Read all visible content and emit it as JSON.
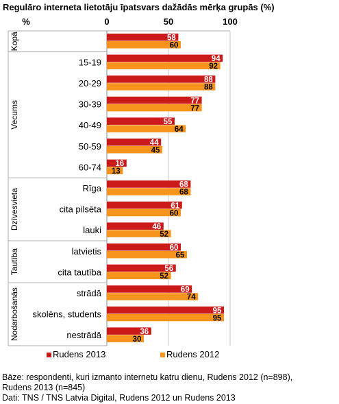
{
  "chart_data": {
    "type": "bar",
    "orientation": "horizontal",
    "title": "Regulāro interneta lietotāju īpatsvars dažādās mērķa grupās (%)",
    "ylabel": "%",
    "xlim": [
      0,
      100
    ],
    "xticks": [
      "0",
      "50",
      "100"
    ],
    "grid": true,
    "legend_position": "bottom",
    "groups": [
      {
        "label": "Kopā",
        "categories": [
          ""
        ]
      },
      {
        "label": "Vecums",
        "categories": [
          "15-19",
          "20-29",
          "30-39",
          "40-49",
          "50-59",
          "60-74"
        ]
      },
      {
        "label": "Dzīvesvieta",
        "categories": [
          "Rīga",
          "cita pilsēta",
          "lauki"
        ]
      },
      {
        "label": "Tautība",
        "categories": [
          "latvietis",
          "cita tautība"
        ]
      },
      {
        "label": "Nodarbošanās",
        "categories": [
          "strādā",
          "skolēns, students",
          "nestrādā"
        ]
      }
    ],
    "series": [
      {
        "name": "Rudens 2013",
        "color": "#cc1a1a",
        "values": [
          58,
          94,
          88,
          77,
          55,
          44,
          16,
          68,
          61,
          46,
          60,
          56,
          69,
          95,
          36
        ]
      },
      {
        "name": "Rudens 2012",
        "color": "#f7941d",
        "values": [
          60,
          92,
          88,
          77,
          64,
          45,
          13,
          68,
          60,
          52,
          65,
          52,
          74,
          95,
          30
        ]
      }
    ]
  },
  "footer": {
    "basis_line1": "Bāze: respondenti, kuri izmanto internetu katru dienu, Rudens 2012 (n=898),",
    "basis_line2": "Rudens 2013 (n=845)",
    "source": "Dati: TNS / TNS Latvia Digital, Rudens 2012 un Rudens 2013"
  }
}
